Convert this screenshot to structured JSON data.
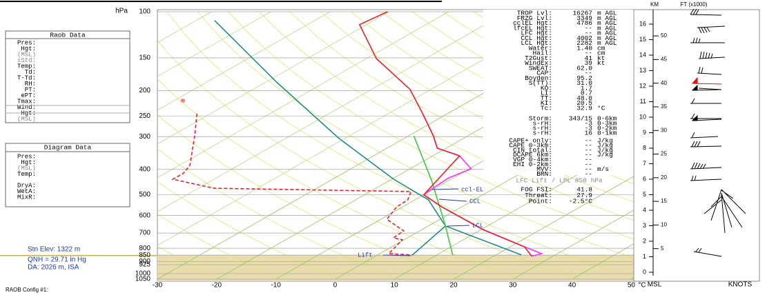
{
  "chart_data": {
    "type": "skew-t",
    "y_label": "hPa",
    "ylog": true,
    "ylim": [
      100,
      1050
    ],
    "yticks": [
      100,
      150,
      200,
      250,
      300,
      400,
      500,
      600,
      700,
      800,
      850,
      900,
      925,
      1000,
      1050
    ],
    "xlim": [
      -30,
      50
    ],
    "xticks": [
      -30,
      -20,
      -10,
      0,
      10,
      20,
      30,
      40,
      50
    ],
    "x_unit": "°C",
    "grid": true,
    "series": [
      {
        "color": "#1f8a8a",
        "dashed": false,
        "x": [
          -96.9,
          -68.1,
          -41.3,
          -19.7,
          -7.7,
          2.9,
          24.3
        ],
        "values": [
          108,
          186,
          303,
          436,
          523,
          658,
          849
        ]
      },
      {
        "color": "#1f8a8a",
        "dashed": false,
        "x": [
          2.9,
          5.9
        ],
        "values": [
          658,
          849
        ]
      },
      {
        "color": "#3cc83c",
        "dashed": false,
        "x": [
          -29.1,
          -12.9,
          2.9,
          12.7
        ],
        "values": [
          298,
          441,
          658,
          849
        ]
      },
      {
        "color": "#e8202a",
        "dashed": true,
        "x": [
          -72.3,
          -66.1,
          -58.2,
          -56.9,
          -57,
          -47.4,
          -13.1,
          -11.2,
          -11,
          -9,
          -2.7,
          -2.4,
          -0.3,
          1.5,
          5.9
        ],
        "values": [
          245,
          298,
          386,
          415,
          436,
          472,
          486,
          523,
          556,
          620,
          687,
          730,
          743,
          839,
          849
        ]
      },
      {
        "color": "#ff30ff",
        "dashed": false,
        "x": [
          -34.2,
          -25.8,
          -21.5,
          -15.5,
          -9.7,
          -10.8,
          -10.4,
          -10,
          -3.4,
          10.3,
          22.4,
          27.3,
          26.4
        ],
        "values": [
          245,
          298,
          332,
          355,
          398,
          431,
          475,
          500,
          556,
          679,
          790,
          839,
          858
        ]
      },
      {
        "color": "#e8202a",
        "dashed": false,
        "x": [
          -70.3,
          -71.2,
          -58.3,
          -43.5,
          -34.2,
          -25.8,
          -21.5,
          -15.5,
          -10,
          -3.4,
          10.3,
          22.4,
          26.4
        ],
        "values": [
          100,
          112,
          151,
          198,
          245,
          298,
          332,
          355,
          500,
          556,
          679,
          790,
          858
        ]
      }
    ],
    "annotations": [
      "ccl-EL",
      "CCL",
      "LCL",
      "Lift",
      "m"
    ]
  },
  "raob_panel": {
    "title": "Raob Data",
    "rows": [
      "Pres:",
      "Hgt:",
      "(MSL)",
      "±Std:",
      "Temp:",
      "Td:",
      "T-Td:",
      "RH:",
      "PT:",
      "ePT:",
      "Tmax:",
      "Wind:",
      "Hgt:",
      "(MSL)"
    ]
  },
  "diagram_panel": {
    "title": "Diagram Data",
    "rows": [
      "Pres:",
      "Hgt:",
      "(MSL)",
      "Temp:",
      "DryA:",
      "WetA:",
      "MixR:"
    ]
  },
  "station": {
    "elevation": "Stn Elev: 1322 m",
    "qnh": "QNH = 29.71 in Hg",
    "density_altitude": "DA: 2026 m, ISA"
  },
  "footer": "RAOB Config #1:",
  "indices": {
    "levels": [
      [
        "TROP Lvl:",
        "16267",
        "m AGL"
      ],
      [
        "FRZG Lvl:",
        "3349",
        "m AGL"
      ],
      [
        "cclEL Hgt:",
        "4786",
        "m AGL"
      ],
      [
        "lfcEL Hgt:",
        "--",
        "m AGL"
      ],
      [
        "LFC Hgt:",
        "--",
        "m AGL"
      ],
      [
        "CCL Hgt:",
        "4002",
        "m AGL"
      ],
      [
        "LCL Hgt:",
        "2282",
        "m AGL"
      ],
      [
        "Water:",
        "1.40",
        "cm"
      ],
      [
        "Hail:",
        "--",
        "cm"
      ],
      [
        "T2Gust:",
        "41",
        "kt"
      ],
      [
        "WindEx:",
        "39",
        "kt"
      ],
      [
        "SWEAT:",
        "62.0"
      ],
      [
        "CAP:",
        "--"
      ],
      [
        "Boyden:",
        "95.2"
      ],
      [
        "S(TT):",
        "31.0"
      ],
      [
        "KO:",
        "1.7"
      ],
      [
        "LI:",
        "0.7"
      ],
      [
        "TT:",
        "48.0"
      ],
      [
        "KI:",
        "20.5"
      ],
      [
        "Tc:",
        "32.9",
        "°C"
      ]
    ],
    "storm": [
      [
        "Storm:",
        "343/15",
        "0-6km"
      ],
      [
        "s-rH:",
        "-3",
        "0-3km"
      ],
      [
        "s-rH:",
        "-3",
        "0-2km"
      ],
      [
        "s-rH:",
        "16",
        "0-1km"
      ]
    ],
    "cape": [
      [
        "CAPE+ only:",
        "--",
        "J/kg"
      ],
      [
        "CAPE 0-3km:",
        "--",
        "J/kg"
      ],
      [
        "CIN total:",
        "--",
        "J/kg"
      ],
      [
        "DCAPE 6km:",
        "--",
        "J/kg"
      ],
      [
        "VGP 0-4km:",
        "--"
      ],
      [
        "EHI 0-2km:",
        "--"
      ],
      [
        "MVV:",
        "--",
        "m/s"
      ],
      [
        "BRN:",
        "--"
      ]
    ],
    "lift_header": "LFC Lift / LPL 858 hPa",
    "fog": [
      [
        "FOG FSI:",
        "41.8"
      ],
      [
        "Threat:",
        "27.9"
      ],
      [
        "Point:",
        "-2.5°C"
      ]
    ]
  },
  "wind_panel": {
    "km_label": "KM",
    "ft_label": "FT (x1000)",
    "bottom_left": "MSL",
    "bottom_right": "KNOTS",
    "km_ticks": [
      0,
      1,
      2,
      3,
      4,
      5,
      6,
      7,
      8,
      9,
      10,
      11,
      12,
      13,
      14,
      15,
      16
    ],
    "ft_ticks": [
      5,
      10,
      15,
      20,
      25,
      30,
      35,
      40,
      45,
      50
    ]
  }
}
